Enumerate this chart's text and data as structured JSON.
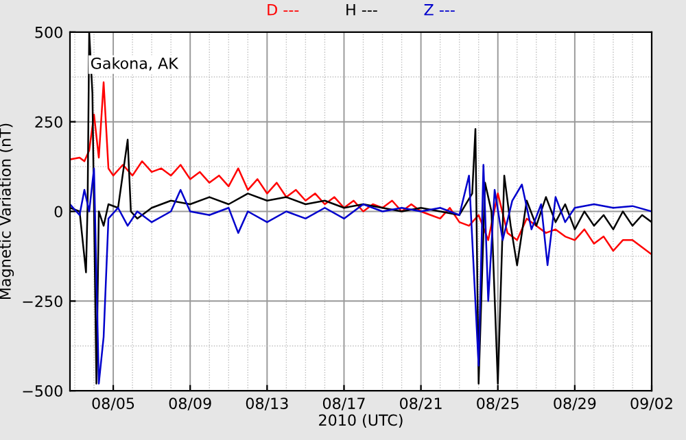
{
  "chart_data": {
    "type": "line",
    "xlabel": "2010 (UTC)",
    "ylabel": "Magnetic Variation (nT)",
    "annotations": [
      "Gakona, AK"
    ],
    "xlim": [
      "2010-08-02T18:00",
      "2010-09-02"
    ],
    "xticks": [
      {
        "value": "2010-08-05",
        "label": "08/05"
      },
      {
        "value": "2010-08-09",
        "label": "08/09"
      },
      {
        "value": "2010-08-13",
        "label": "08/13"
      },
      {
        "value": "2010-08-17",
        "label": "08/17"
      },
      {
        "value": "2010-08-21",
        "label": "08/21"
      },
      {
        "value": "2010-08-25",
        "label": "08/25"
      },
      {
        "value": "2010-08-29",
        "label": "08/29"
      },
      {
        "value": "2010-09-02",
        "label": "09/02"
      }
    ],
    "ylim": [
      -500,
      500
    ],
    "yticks": [
      -500,
      -250,
      0,
      250,
      500
    ],
    "grid": true,
    "legend": "top",
    "line_style": "solid",
    "series": [
      {
        "name": "D ---",
        "color": "#ff0000",
        "x": [
          "2010-08-02T18:00",
          "2010-08-03T06:00",
          "2010-08-03T12:00",
          "2010-08-03T18:00",
          "2010-08-04T00:00",
          "2010-08-04T06:00",
          "2010-08-04T12:00",
          "2010-08-04T18:00",
          "2010-08-05T00:00",
          "2010-08-05T12:00",
          "2010-08-06T00:00",
          "2010-08-06T12:00",
          "2010-08-07T00:00",
          "2010-08-07T12:00",
          "2010-08-08T00:00",
          "2010-08-08T12:00",
          "2010-08-09T00:00",
          "2010-08-09T12:00",
          "2010-08-10T00:00",
          "2010-08-10T12:00",
          "2010-08-11T00:00",
          "2010-08-11T12:00",
          "2010-08-12T00:00",
          "2010-08-12T12:00",
          "2010-08-13T00:00",
          "2010-08-13T12:00",
          "2010-08-14T00:00",
          "2010-08-14T12:00",
          "2010-08-15T00:00",
          "2010-08-15T12:00",
          "2010-08-16T00:00",
          "2010-08-16T12:00",
          "2010-08-17T00:00",
          "2010-08-17T12:00",
          "2010-08-18T00:00",
          "2010-08-18T12:00",
          "2010-08-19T00:00",
          "2010-08-19T12:00",
          "2010-08-20T00:00",
          "2010-08-20T12:00",
          "2010-08-21T00:00",
          "2010-08-21T12:00",
          "2010-08-22T00:00",
          "2010-08-22T12:00",
          "2010-08-23T00:00",
          "2010-08-23T12:00",
          "2010-08-24T00:00",
          "2010-08-24T12:00",
          "2010-08-25T00:00",
          "2010-08-25T12:00",
          "2010-08-26T00:00",
          "2010-08-26T12:00",
          "2010-08-27T00:00",
          "2010-08-27T12:00",
          "2010-08-28T00:00",
          "2010-08-28T12:00",
          "2010-08-29T00:00",
          "2010-08-29T12:00",
          "2010-08-30T00:00",
          "2010-08-30T12:00",
          "2010-08-31T00:00",
          "2010-08-31T12:00",
          "2010-09-01T00:00",
          "2010-09-01T12:00",
          "2010-09-02T00:00"
        ],
        "values": [
          145,
          150,
          140,
          170,
          270,
          150,
          360,
          120,
          100,
          130,
          100,
          140,
          110,
          120,
          100,
          130,
          90,
          110,
          80,
          100,
          70,
          120,
          60,
          90,
          50,
          80,
          40,
          60,
          30,
          50,
          20,
          40,
          10,
          30,
          0,
          20,
          10,
          30,
          0,
          20,
          0,
          -10,
          -20,
          10,
          -30,
          -40,
          -10,
          -80,
          50,
          -60,
          -80,
          -20,
          -40,
          -60,
          -50,
          -70,
          -80,
          -50,
          -90,
          -70,
          -110,
          -80,
          -80,
          -100,
          -120
        ]
      },
      {
        "name": "H ---",
        "color": "#000000",
        "x": [
          "2010-08-02T18:00",
          "2010-08-03T06:00",
          "2010-08-03T14:00",
          "2010-08-03T16:00",
          "2010-08-03T18:00",
          "2010-08-03T22:00",
          "2010-08-04T03:00",
          "2010-08-04T06:00",
          "2010-08-04T12:00",
          "2010-08-04T18:00",
          "2010-08-05T06:00",
          "2010-08-05T18:00",
          "2010-08-05T22:00",
          "2010-08-06T06:00",
          "2010-08-07T00:00",
          "2010-08-08T00:00",
          "2010-08-09T00:00",
          "2010-08-10T00:00",
          "2010-08-11T00:00",
          "2010-08-12T00:00",
          "2010-08-13T00:00",
          "2010-08-14T00:00",
          "2010-08-15T00:00",
          "2010-08-16T00:00",
          "2010-08-17T00:00",
          "2010-08-18T00:00",
          "2010-08-19T00:00",
          "2010-08-20T00:00",
          "2010-08-21T00:00",
          "2010-08-22T00:00",
          "2010-08-23T00:00",
          "2010-08-23T16:00",
          "2010-08-23T20:00",
          "2010-08-24T00:00",
          "2010-08-24T08:00",
          "2010-08-24T16:00",
          "2010-08-25T00:00",
          "2010-08-25T08:00",
          "2010-08-25T16:00",
          "2010-08-26T00:00",
          "2010-08-26T12:00",
          "2010-08-27T00:00",
          "2010-08-27T12:00",
          "2010-08-28T00:00",
          "2010-08-28T12:00",
          "2010-08-29T00:00",
          "2010-08-29T12:00",
          "2010-08-30T00:00",
          "2010-08-30T12:00",
          "2010-08-31T00:00",
          "2010-08-31T12:00",
          "2010-09-01T00:00",
          "2010-09-01T12:00",
          "2010-09-02T00:00"
        ],
        "values": [
          10,
          0,
          -170,
          20,
          500,
          330,
          -480,
          0,
          -40,
          20,
          10,
          200,
          0,
          -20,
          10,
          30,
          20,
          40,
          20,
          50,
          30,
          40,
          20,
          30,
          10,
          20,
          10,
          0,
          10,
          0,
          -10,
          50,
          230,
          -480,
          80,
          0,
          -480,
          100,
          -40,
          -150,
          30,
          -40,
          40,
          -30,
          20,
          -50,
          0,
          -40,
          -10,
          -50,
          0,
          -40,
          -10,
          -30
        ]
      },
      {
        "name": "Z ---",
        "color": "#0000cc",
        "x": [
          "2010-08-02T18:00",
          "2010-08-03T06:00",
          "2010-08-03T12:00",
          "2010-08-03T18:00",
          "2010-08-04T00:00",
          "2010-08-04T06:00",
          "2010-08-04T12:00",
          "2010-08-04T18:00",
          "2010-08-05T06:00",
          "2010-08-05T18:00",
          "2010-08-06T06:00",
          "2010-08-07T00:00",
          "2010-08-08T00:00",
          "2010-08-08T12:00",
          "2010-08-09T00:00",
          "2010-08-10T00:00",
          "2010-08-11T00:00",
          "2010-08-11T12:00",
          "2010-08-12T00:00",
          "2010-08-13T00:00",
          "2010-08-14T00:00",
          "2010-08-15T00:00",
          "2010-08-16T00:00",
          "2010-08-17T00:00",
          "2010-08-18T00:00",
          "2010-08-19T00:00",
          "2010-08-20T00:00",
          "2010-08-21T00:00",
          "2010-08-22T00:00",
          "2010-08-23T00:00",
          "2010-08-23T12:00",
          "2010-08-24T00:00",
          "2010-08-24T06:00",
          "2010-08-24T12:00",
          "2010-08-24T20:00",
          "2010-08-25T06:00",
          "2010-08-25T18:00",
          "2010-08-26T06:00",
          "2010-08-26T18:00",
          "2010-08-27T06:00",
          "2010-08-27T14:00",
          "2010-08-28T00:00",
          "2010-08-28T12:00",
          "2010-08-29T00:00",
          "2010-08-30T00:00",
          "2010-08-31T00:00",
          "2010-09-01T00:00",
          "2010-09-02T00:00"
        ],
        "values": [
          20,
          -10,
          60,
          0,
          120,
          -480,
          -350,
          -20,
          10,
          -40,
          0,
          -30,
          0,
          60,
          0,
          -10,
          10,
          -60,
          0,
          -30,
          0,
          -20,
          10,
          -20,
          20,
          0,
          10,
          0,
          10,
          -10,
          100,
          -430,
          130,
          -250,
          60,
          -80,
          30,
          75,
          -50,
          20,
          -150,
          40,
          -30,
          10,
          20,
          10,
          15,
          0
        ]
      }
    ]
  }
}
